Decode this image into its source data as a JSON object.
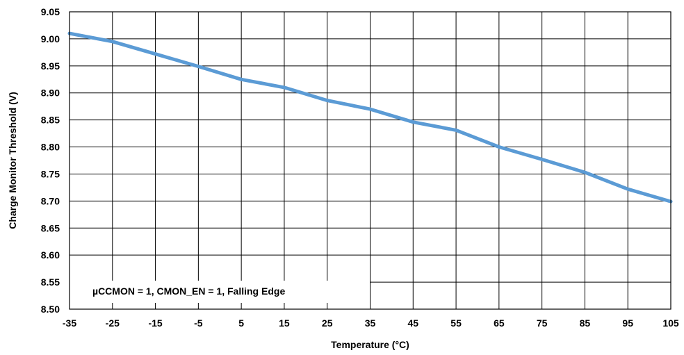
{
  "chart_data": {
    "type": "line",
    "xlabel": "Temperature (°C)",
    "ylabel": "Charge Monitor Threshold (V)",
    "xlim": [
      -35,
      105
    ],
    "ylim": [
      8.5,
      9.05
    ],
    "x_ticks": [
      "-35",
      "-25",
      "-15",
      "-5",
      "5",
      "15",
      "25",
      "35",
      "45",
      "55",
      "65",
      "75",
      "85",
      "95",
      "105"
    ],
    "y_ticks": [
      "9.05",
      "9.00",
      "8.95",
      "8.90",
      "8.85",
      "8.80",
      "8.75",
      "8.70",
      "8.65",
      "8.60",
      "8.55",
      "8.50"
    ],
    "grid": true,
    "annotation": "µCCMON = 1, CMON_EN = 1, Falling Edge",
    "series": [
      {
        "color": "#5b9bd5",
        "x": [
          -35,
          -25,
          -15,
          -5,
          5,
          15,
          25,
          35,
          45,
          55,
          65,
          75,
          85,
          95,
          105
        ],
        "y": [
          9.01,
          8.995,
          8.972,
          8.949,
          8.925,
          8.91,
          8.886,
          8.87,
          8.846,
          8.831,
          8.8,
          8.777,
          8.753,
          8.722,
          8.699
        ]
      }
    ]
  }
}
